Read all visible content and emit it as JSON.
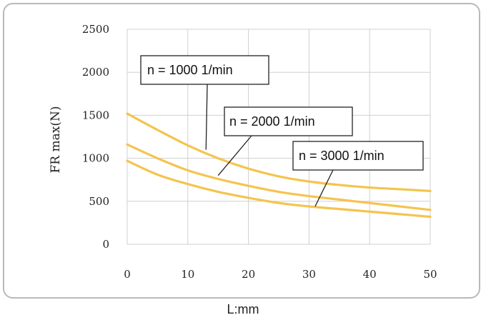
{
  "chart_data": {
    "type": "line",
    "xlabel": "L:mm",
    "ylabel": "FR max(N)",
    "xlim": [
      0,
      50
    ],
    "ylim": [
      0,
      2500
    ],
    "x_ticks": [
      0,
      10,
      20,
      30,
      40,
      50
    ],
    "y_ticks": [
      0,
      500,
      1000,
      1500,
      2000,
      2500
    ],
    "grid": true,
    "line_color": "#f4c44e",
    "x": [
      0,
      5,
      10,
      15,
      20,
      25,
      30,
      35,
      40,
      45,
      50
    ],
    "series": [
      {
        "name": "n = 1000  1/min",
        "values": [
          1520,
          1330,
          1150,
          1000,
          880,
          790,
          730,
          690,
          660,
          640,
          620
        ]
      },
      {
        "name": "n = 2000  1/min",
        "values": [
          1160,
          1000,
          860,
          760,
          680,
          610,
          560,
          520,
          480,
          440,
          400
        ]
      },
      {
        "name": "n = 3000  1/min",
        "values": [
          970,
          810,
          700,
          610,
          540,
          480,
          440,
          410,
          380,
          350,
          320
        ]
      }
    ],
    "annotations": [
      {
        "text": "n = 1000  1/min",
        "series": 0,
        "point": [
          13,
          1100
        ]
      },
      {
        "text": "n = 2000  1/min",
        "series": 1,
        "point": [
          15,
          800
        ]
      },
      {
        "text": "n = 3000  1/min",
        "series": 2,
        "point": [
          31,
          440
        ]
      }
    ]
  }
}
